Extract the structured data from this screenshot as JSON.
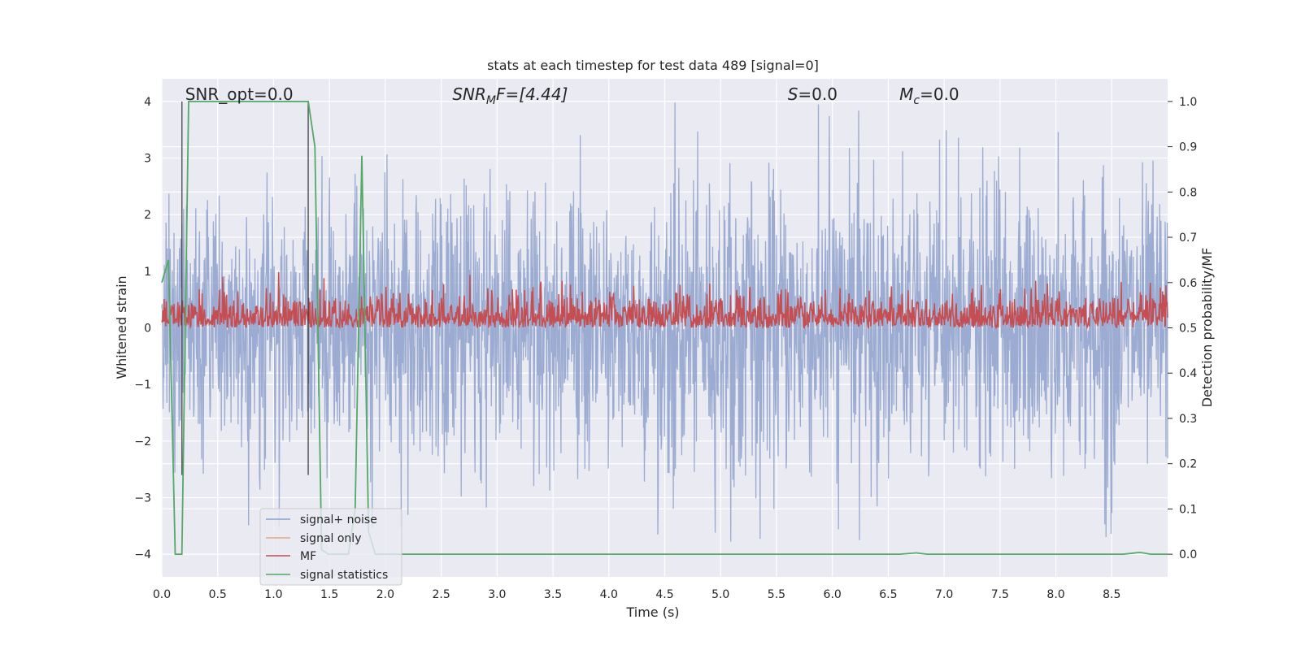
{
  "chart_data": {
    "type": "line",
    "title": "stats at each timestep for test data 489 [signal=0]",
    "xlabel": "Time (s)",
    "ylabel": "Whitened strain",
    "ylabel_right": "Detection probability/MF",
    "xlim": [
      0.0,
      9.0
    ],
    "ylim": [
      -4.4,
      4.4
    ],
    "ylim_right": [
      -0.05,
      1.05
    ],
    "x_ticks": [
      "0.0",
      "0.5",
      "1.0",
      "1.5",
      "2.0",
      "2.5",
      "3.0",
      "3.5",
      "4.0",
      "4.5",
      "5.0",
      "5.5",
      "6.0",
      "6.5",
      "7.0",
      "7.5",
      "8.0",
      "8.5"
    ],
    "y_ticks": [
      "−4",
      "−3",
      "−2",
      "−1",
      "0",
      "1",
      "2",
      "3",
      "4"
    ],
    "y_ticks_right": [
      "0.0",
      "0.1",
      "0.2",
      "0.3",
      "0.4",
      "0.5",
      "0.6",
      "0.7",
      "0.8",
      "0.9",
      "1.0"
    ],
    "grid": true,
    "legend_position": "lower-left",
    "annotations": {
      "snr_opt": {
        "pre": "SNR_opt=0.0",
        "x": 0.18
      },
      "snr_mf": {
        "base": "SNR",
        "sub": "M",
        "rest": "F=[4.44]",
        "x": 2.6
      },
      "s": {
        "base": "S",
        "rest": "=0.0",
        "x": 5.6
      },
      "mc": {
        "base": "M",
        "sub": "c",
        "rest": "=0.0",
        "x": 6.6
      }
    },
    "vertical_lines": [
      0.18,
      1.31
    ],
    "series": [
      {
        "name": "signal+ noise",
        "color": "#8da0cb",
        "axis": "left",
        "amplitude_range": [
          -3.8,
          4.0
        ]
      },
      {
        "name": "signal only",
        "color": "#e8a385",
        "axis": "left",
        "values": []
      },
      {
        "name": "MF",
        "color": "#c44e52",
        "axis": "right",
        "amplitude_range": [
          0.5,
          0.65
        ]
      },
      {
        "name": "signal statistics",
        "color": "#55a868",
        "axis": "right",
        "x": [
          0.0,
          0.06,
          0.12,
          0.18,
          0.24,
          0.3,
          1.31,
          1.37,
          1.43,
          1.49,
          1.55,
          1.61,
          1.67,
          1.73,
          1.79,
          1.85,
          1.91,
          1.97,
          2.1,
          6.6,
          6.75,
          6.85,
          8.6,
          8.75,
          8.85,
          9.0
        ],
        "values": [
          0.6,
          0.65,
          0.0,
          0.0,
          1.0,
          1.0,
          1.0,
          0.9,
          0.01,
          0.0,
          0.0,
          0.0,
          0.0,
          0.1,
          0.88,
          0.05,
          0.0,
          0.0,
          0.0,
          0.0,
          0.003,
          0.0,
          0.0,
          0.004,
          0.0,
          0.0
        ]
      }
    ]
  }
}
